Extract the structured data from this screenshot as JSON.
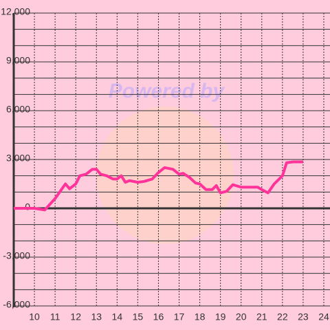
{
  "chart_data": {
    "type": "line",
    "watermark": "Powered by",
    "x": [
      9,
      10,
      10.5,
      11,
      11.5,
      11.7,
      12,
      12.2,
      12.5,
      12.8,
      13,
      13.2,
      13.5,
      13.8,
      14,
      14.2,
      14.4,
      14.6,
      15,
      15.3,
      15.7,
      16,
      16.3,
      16.7,
      17,
      17.2,
      17.5,
      17.8,
      18,
      18.3,
      18.6,
      18.8,
      19,
      19.3,
      19.6,
      20,
      20.5,
      20.8,
      21,
      21.3,
      21.6,
      22,
      22.2,
      22.5,
      23
    ],
    "series": [
      {
        "color": "#ff3399",
        "values": [
          0,
          0,
          -100,
          600,
          1500,
          1200,
          1500,
          2000,
          2100,
          2400,
          2400,
          2100,
          2000,
          1800,
          1800,
          2000,
          1600,
          1700,
          1600,
          1650,
          1800,
          2200,
          2500,
          2400,
          2100,
          2150,
          1900,
          1550,
          1500,
          1150,
          1150,
          1400,
          950,
          1050,
          1450,
          1300,
          1300,
          1300,
          1150,
          950,
          1500,
          2000,
          2800,
          2850,
          2850
        ]
      }
    ],
    "xlim": [
      9,
      24.3
    ],
    "xticks": [
      10,
      11,
      12,
      13,
      14,
      15,
      16,
      17,
      18,
      19,
      20,
      21,
      22,
      23,
      24
    ],
    "ylim": [
      -6000,
      12000
    ],
    "yticks": [
      {
        "value": -6000,
        "label": "-6,000"
      },
      {
        "value": -3000,
        "label": "-3,000"
      },
      0,
      {
        "value": 3000,
        "label": "3,000"
      },
      {
        "value": 6000,
        "label": "6,000"
      },
      {
        "value": 9000,
        "label": "9,000"
      },
      {
        "value": 12000,
        "label": "12,000"
      }
    ],
    "yminor": [
      -5000,
      -4000,
      -2000,
      -1000,
      1000,
      2000,
      4000,
      5000,
      7000,
      8000,
      10000,
      11000
    ],
    "grid": true
  }
}
